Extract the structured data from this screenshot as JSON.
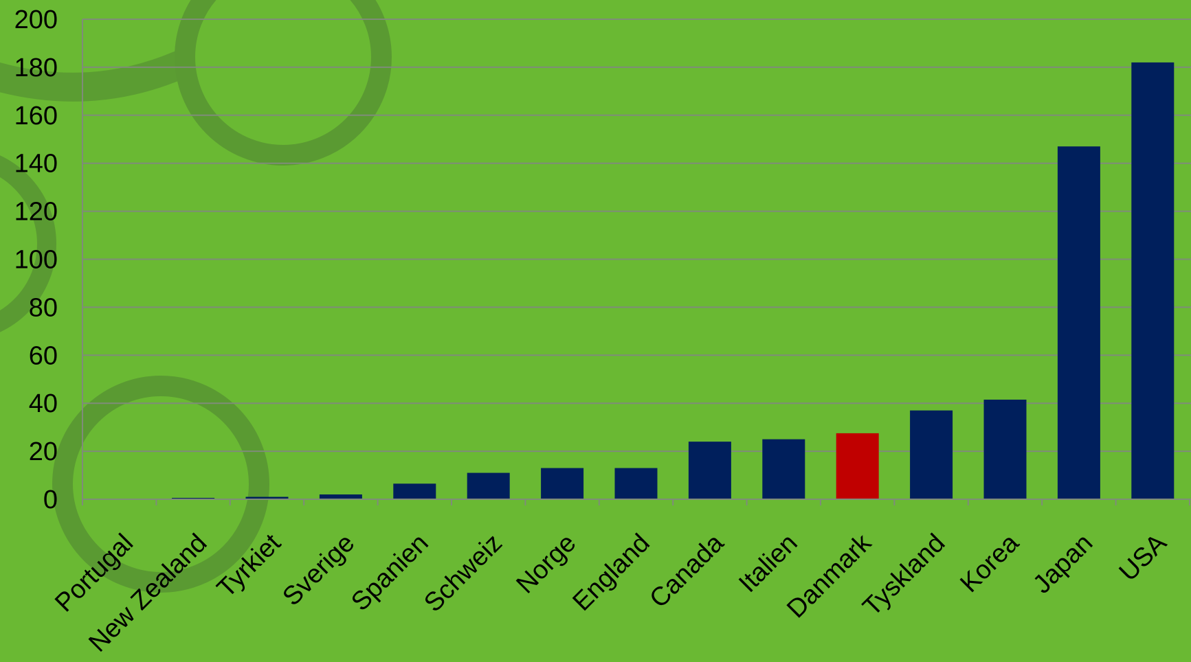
{
  "chart_data": {
    "type": "bar",
    "categories": [
      "Portugal",
      "New Zealand",
      "Tyrkiet",
      "Sverige",
      "Spanien",
      "Schweiz",
      "Norge",
      "England",
      "Canada",
      "Italien",
      "Danmark",
      "Tyskland",
      "Korea",
      "Japan",
      "USA"
    ],
    "values": [
      0,
      0.5,
      1,
      2,
      6.5,
      11,
      13,
      13,
      24,
      25,
      27.5,
      37,
      41.5,
      147,
      182
    ],
    "highlight_category": "Danmark",
    "ylim": [
      0,
      200
    ],
    "yticks": [
      0,
      20,
      40,
      60,
      80,
      100,
      120,
      140,
      160,
      180,
      200
    ],
    "grid": true,
    "legend": "none",
    "title": "",
    "xlabel": "",
    "ylabel": "",
    "colors": {
      "bar": "#001f5c",
      "highlight": "#c00000",
      "background": "#6ab933",
      "decor_ring": "#5a9a32",
      "grid": "#7f8c7a"
    }
  }
}
